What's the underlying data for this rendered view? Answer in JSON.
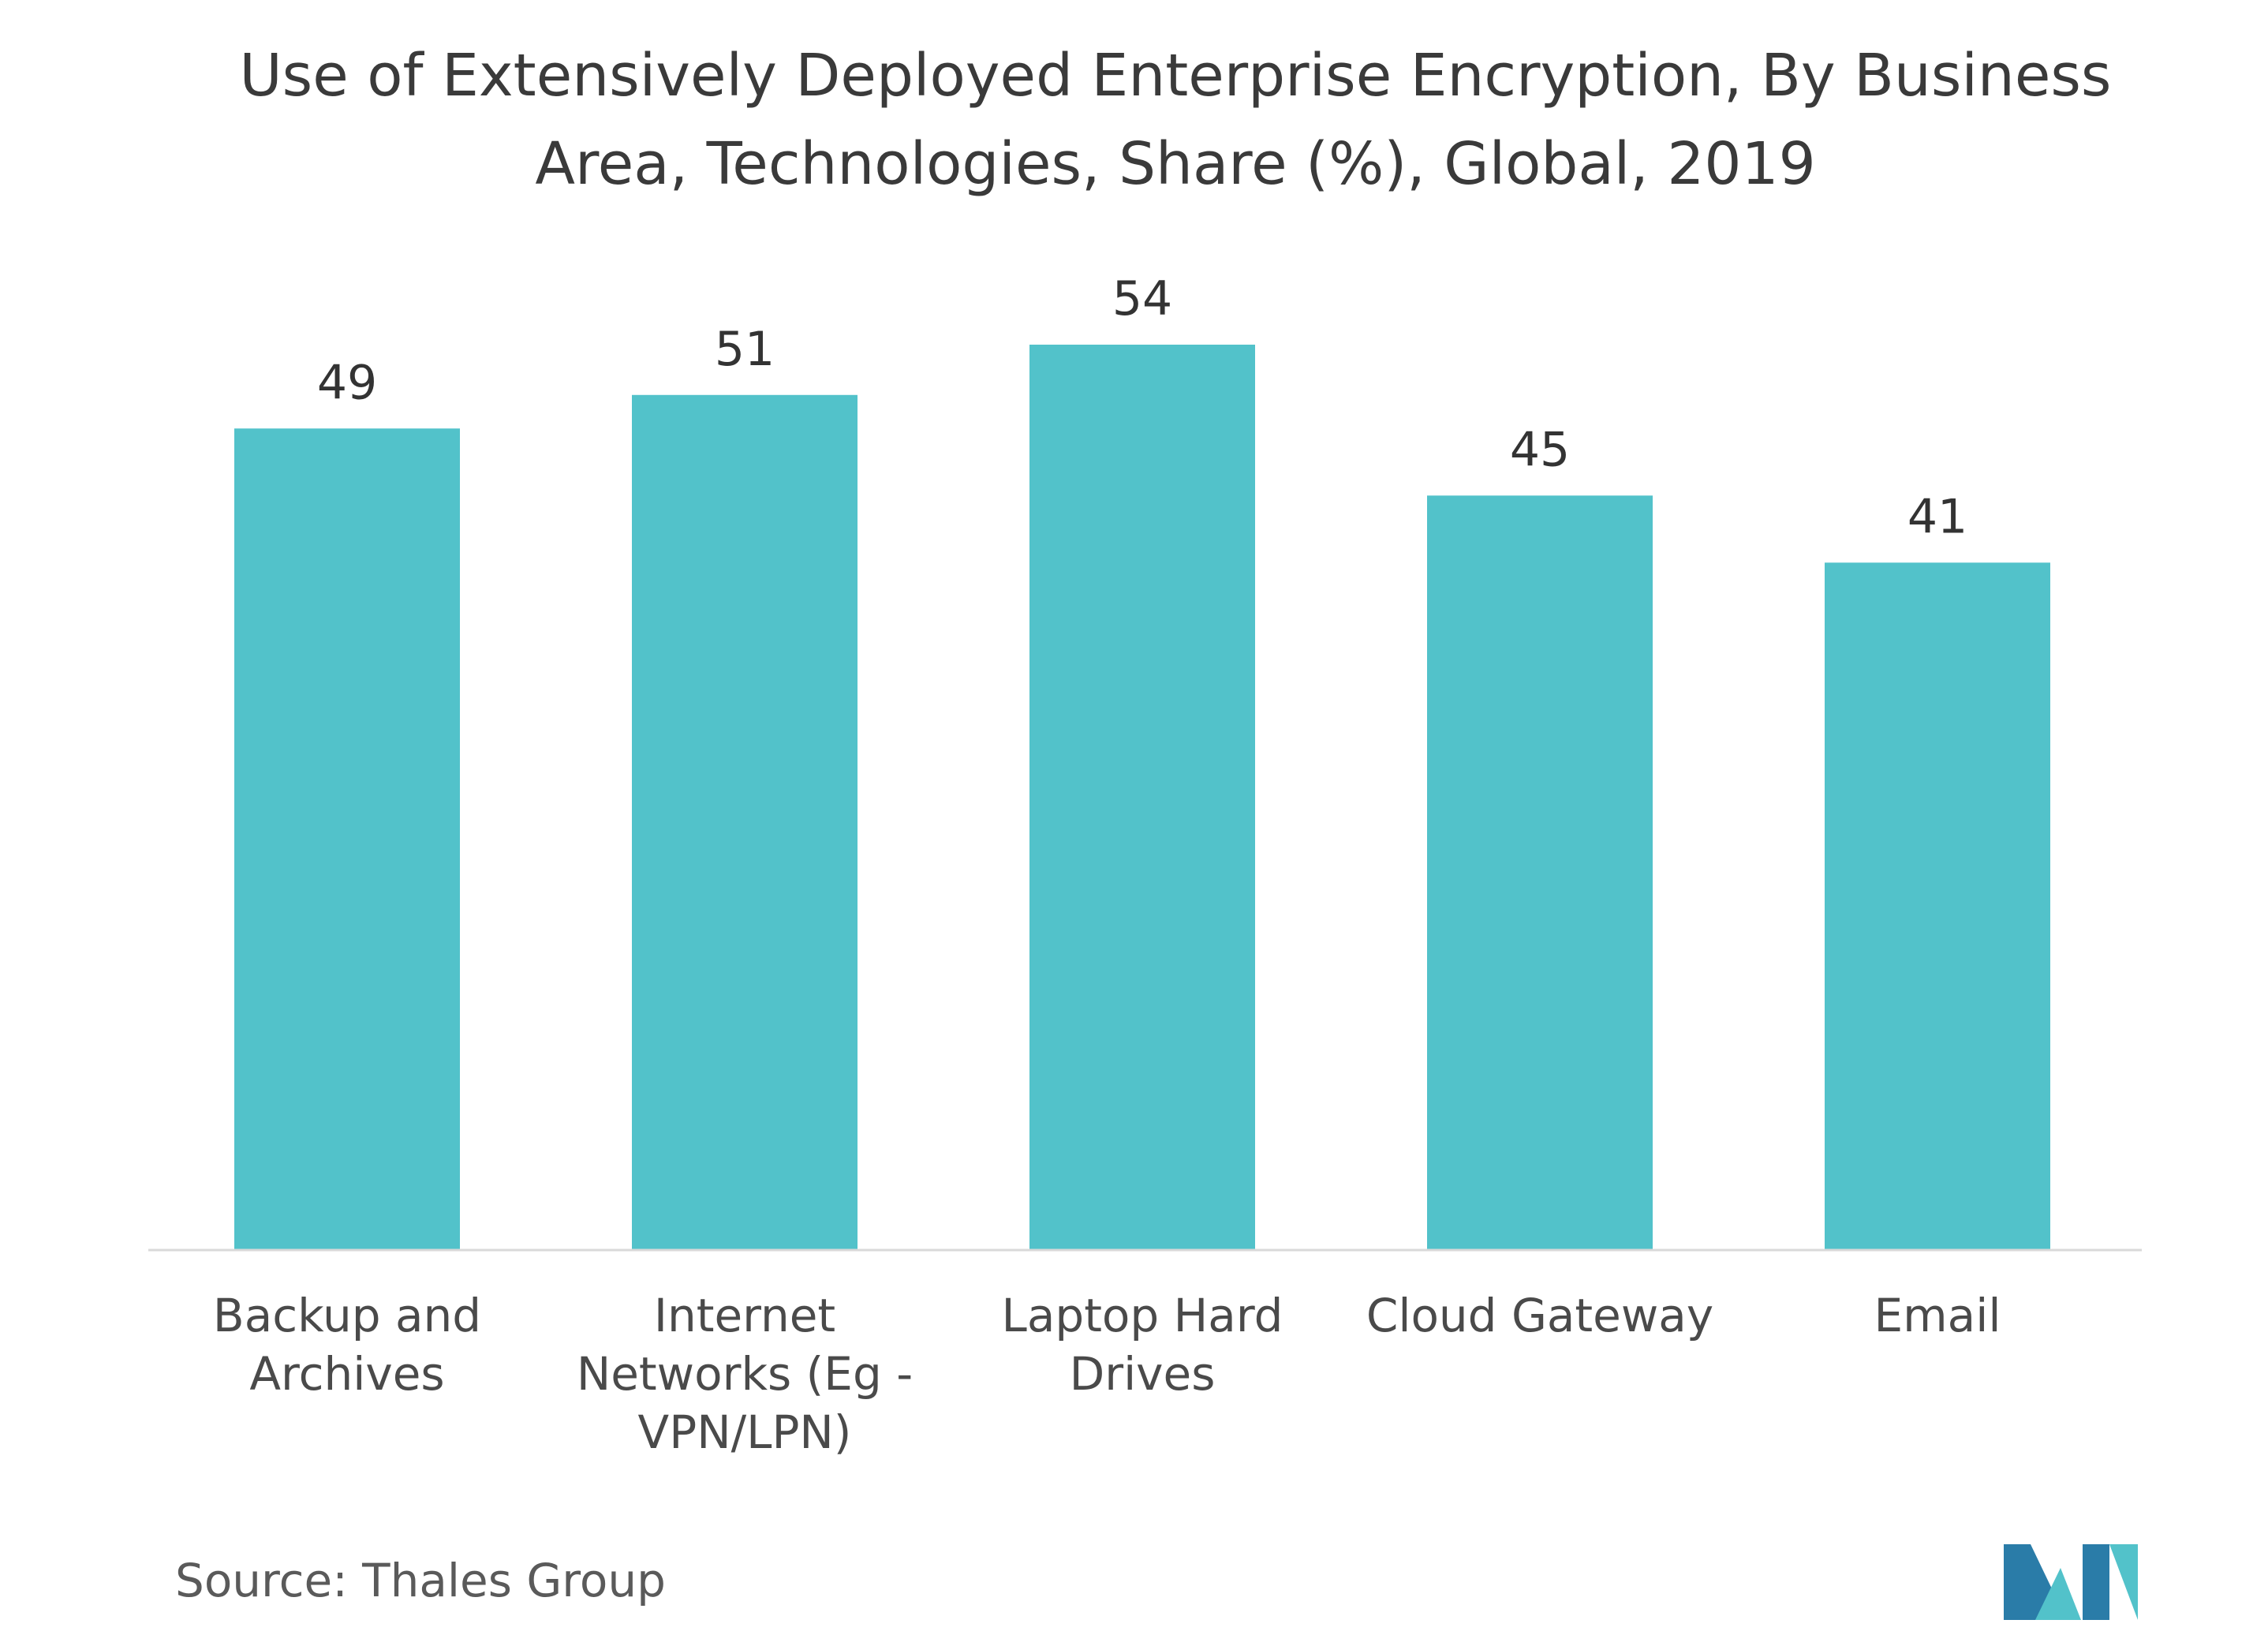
{
  "chart_data": {
    "type": "bar",
    "title_lines": [
      "Use of Extensively Deployed Enterprise Encryption, By Business",
      "Area, Technologies, Share (%), Global, 2019"
    ],
    "categories": [
      [
        "Backup and",
        "Archives"
      ],
      [
        "Internet",
        "Networks (Eg -",
        "VPN/LPN)"
      ],
      [
        "Laptop Hard",
        "Drives"
      ],
      [
        "Cloud Gateway"
      ],
      [
        "Email"
      ]
    ],
    "values": [
      49,
      51,
      54,
      45,
      41
    ],
    "ylim": [
      0,
      60
    ],
    "grid": false,
    "bar_color": "#52c2ca",
    "axis_color": "#d9d9d9"
  },
  "source": "Source: Thales Group",
  "logo": {
    "colors": [
      "#2a7ca8",
      "#52c2ca"
    ]
  }
}
